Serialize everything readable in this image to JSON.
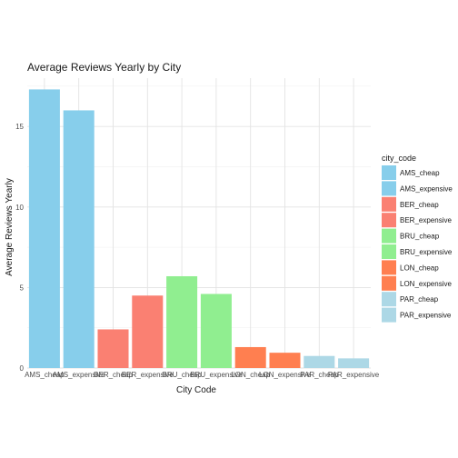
{
  "chart_data": {
    "type": "bar",
    "title": "Average Reviews Yearly by City",
    "xlabel": "City Code",
    "ylabel": "Average Reviews Yearly",
    "ylim": [
      0,
      18
    ],
    "yticks": [
      0,
      5,
      10,
      15
    ],
    "grid": true,
    "legend_title": "city_code",
    "legend_position": "right",
    "categories": [
      "AMS_cheap",
      "AMS_expensive",
      "BER_cheap",
      "BER_expensive",
      "BRU_cheap",
      "BRU_expensive",
      "LON_cheap",
      "LON_expensive",
      "PAR_cheap",
      "PAR_expensive"
    ],
    "values": [
      17.3,
      16.0,
      2.4,
      4.5,
      5.7,
      4.6,
      1.3,
      0.95,
      0.75,
      0.6
    ],
    "colors": [
      "#87ceeb",
      "#87ceeb",
      "#fa8072",
      "#fa8072",
      "#90ee90",
      "#90ee90",
      "#ff7f50",
      "#ff7f50",
      "#add8e6",
      "#add8e6"
    ]
  }
}
